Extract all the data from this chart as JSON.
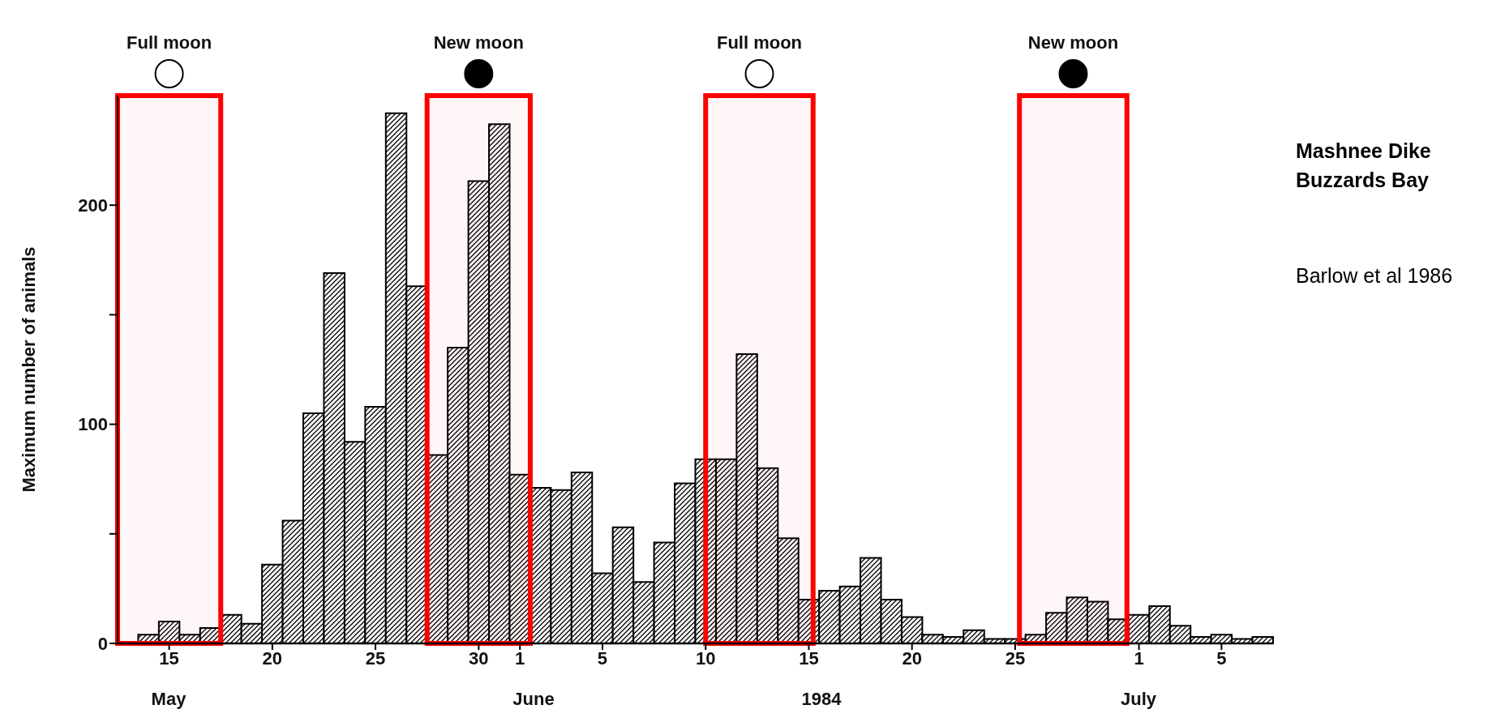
{
  "chart_data": {
    "type": "histogram",
    "title": "Mashnee Dike\nBuzzards Bay",
    "ylabel": "Maximum number of animals",
    "bins": [
      "1984-05-14",
      "1984-05-15",
      "1984-05-16",
      "1984-05-17",
      "1984-05-18",
      "1984-05-19",
      "1984-05-20",
      "1984-05-21",
      "1984-05-22",
      "1984-05-23",
      "1984-05-24",
      "1984-05-25",
      "1984-05-26",
      "1984-05-27",
      "1984-05-28",
      "1984-05-29",
      "1984-05-30",
      "1984-05-31",
      "1984-06-01",
      "1984-06-02",
      "1984-06-03",
      "1984-06-04",
      "1984-06-05",
      "1984-06-06",
      "1984-06-07",
      "1984-06-08",
      "1984-06-09",
      "1984-06-10",
      "1984-06-11",
      "1984-06-12",
      "1984-06-13",
      "1984-06-14",
      "1984-06-15",
      "1984-06-16",
      "1984-06-17",
      "1984-06-18",
      "1984-06-19",
      "1984-06-20",
      "1984-06-21",
      "1984-06-22",
      "1984-06-23",
      "1984-06-24",
      "1984-06-25",
      "1984-06-26",
      "1984-06-27",
      "1984-06-28",
      "1984-06-29",
      "1984-06-30",
      "1984-07-01",
      "1984-07-02",
      "1984-07-03",
      "1984-07-04",
      "1984-07-05",
      "1984-07-06",
      "1984-07-07",
      "1984-07-08"
    ],
    "values": [
      4,
      10,
      4,
      7,
      13,
      9,
      36,
      56,
      105,
      169,
      92,
      108,
      242,
      163,
      86,
      135,
      211,
      237,
      77,
      71,
      70,
      78,
      32,
      53,
      28,
      46,
      73,
      84,
      84,
      132,
      80,
      48,
      20,
      24,
      26,
      39,
      20,
      12,
      4,
      3,
      6,
      2,
      2,
      4,
      14,
      21,
      19,
      11,
      13,
      17,
      8,
      3,
      4,
      2,
      3
    ],
    "color": "#000000",
    "xlim": [
      "1984-05-13",
      "1984-07-08"
    ],
    "xticks": [
      {
        "value": "1984-05-15T12:00",
        "label": "15"
      },
      {
        "value": "1984-05-20T12:00",
        "label": "20"
      },
      {
        "value": "1984-05-25T12:00",
        "label": "25"
      },
      {
        "value": "1984-05-30T12:00",
        "label": "30"
      },
      {
        "value": "1984-06-01T12:00",
        "label": "1"
      },
      {
        "value": "1984-06-05T12:00",
        "label": "5"
      },
      {
        "value": "1984-06-10T12:00",
        "label": "10"
      },
      {
        "value": "1984-06-15T12:00",
        "label": "15"
      },
      {
        "value": "1984-06-20T12:00",
        "label": "20"
      },
      {
        "value": "1984-06-25T12:00",
        "label": "25"
      },
      {
        "value": "1984-07-01T12:00",
        "label": "1"
      },
      {
        "value": "1984-07-05T12:00",
        "label": "5"
      }
    ],
    "ylim": [
      0,
      250
    ],
    "yticks": [
      0,
      {
        "value": 50,
        "label": null
      },
      100,
      {
        "value": 150,
        "label": null
      },
      200
    ],
    "bands": [
      {
        "axis": "x",
        "from": "1984-05-13",
        "to": "1984-05-18",
        "label": "Full moon",
        "color": "#ff0000"
      },
      {
        "axis": "x",
        "from": "1984-05-28",
        "to": "1984-06-02",
        "label": "New moon",
        "color": "#ff0000"
      },
      {
        "axis": "x",
        "from": "1984-06-10T12:00",
        "to": "1984-06-15T17:00",
        "label": "Full moon",
        "color": "#ff0000"
      },
      {
        "axis": "x",
        "from": "1984-06-25T17:00",
        "to": "1984-06-30T22:00",
        "label": "New moon",
        "color": "#ff0000"
      }
    ],
    "annotations": [
      "Barlow et al 1986",
      "May",
      "June",
      "1984",
      "July"
    ]
  }
}
